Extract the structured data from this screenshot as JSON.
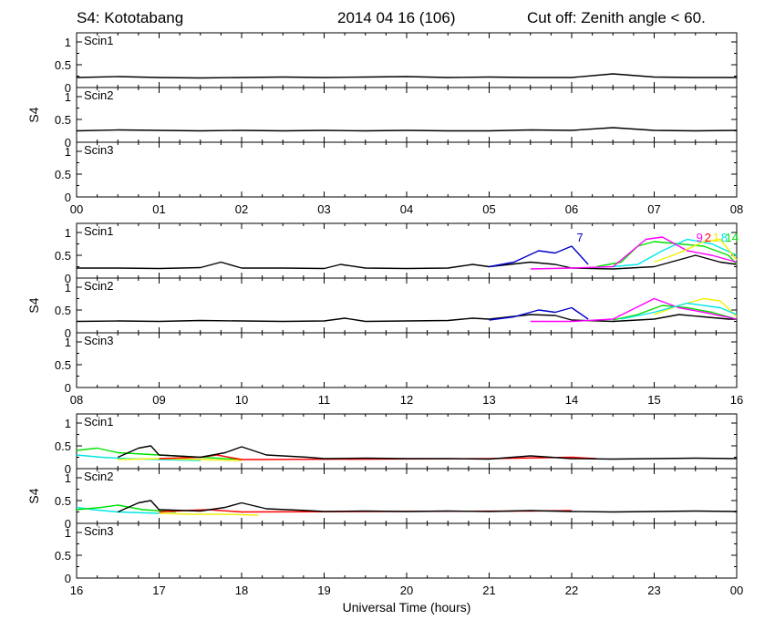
{
  "header": {
    "left": "S4: Kototabang",
    "center": "2014 04 16 (106)",
    "right": "Cut off: Zenith angle < 60."
  },
  "x_axis_label": "Universal Time (hours)",
  "colors": {
    "black": "#000000",
    "blue": "#0000cc",
    "green": "#00e000",
    "cyan": "#00e6e6",
    "magenta": "#ff00ff",
    "red": "#ff0000",
    "yellow": "#f0f000"
  },
  "chart_data": [
    {
      "type": "line",
      "row": 1,
      "ylabel": "S4",
      "ylim": [
        0,
        1.2
      ],
      "yticks": [
        0,
        0.5,
        1
      ],
      "ytick_labels": [
        "0",
        "0.5",
        "1"
      ],
      "xlim": [
        0,
        8
      ],
      "xtick_labels": [
        "00",
        "01",
        "02",
        "03",
        "04",
        "05",
        "06",
        "07",
        "08"
      ],
      "panels": [
        {
          "name": "Scin1",
          "series": [
            {
              "color": "black",
              "x": [
                0,
                0.5,
                1,
                1.5,
                2,
                2.5,
                3,
                3.5,
                4,
                4.5,
                5,
                5.5,
                6,
                6.5,
                7,
                7.5,
                8
              ],
              "y": [
                0.22,
                0.24,
                0.22,
                0.21,
                0.22,
                0.23,
                0.22,
                0.23,
                0.24,
                0.22,
                0.23,
                0.22,
                0.22,
                0.3,
                0.23,
                0.22,
                0.22
              ]
            }
          ]
        },
        {
          "name": "Scin2",
          "series": [
            {
              "color": "black",
              "x": [
                0,
                0.5,
                1,
                1.5,
                2,
                2.5,
                3,
                3.5,
                4,
                4.5,
                5,
                5.5,
                6,
                6.5,
                7,
                7.5,
                8
              ],
              "y": [
                0.25,
                0.27,
                0.26,
                0.25,
                0.26,
                0.25,
                0.26,
                0.25,
                0.26,
                0.25,
                0.25,
                0.27,
                0.26,
                0.32,
                0.26,
                0.25,
                0.26
              ]
            }
          ]
        },
        {
          "name": "Scin3",
          "series": []
        }
      ]
    },
    {
      "type": "line",
      "row": 2,
      "ylabel": "S4",
      "ylim": [
        0,
        1.2
      ],
      "yticks": [
        0,
        0.5,
        1
      ],
      "ytick_labels": [
        "0",
        "0.5",
        "1"
      ],
      "xlim": [
        8,
        16
      ],
      "xtick_labels": [
        "08",
        "09",
        "10",
        "11",
        "12",
        "13",
        "14",
        "15",
        "16"
      ],
      "panels": [
        {
          "name": "Scin1",
          "series": [
            {
              "color": "black",
              "x": [
                8,
                8.5,
                9,
                9.5,
                9.75,
                10,
                10.5,
                11,
                11.2,
                11.5,
                12,
                12.5,
                12.8,
                13,
                13.5,
                13.8,
                14,
                14.5,
                15,
                15.3,
                15.5,
                15.8,
                16
              ],
              "y": [
                0.22,
                0.22,
                0.21,
                0.23,
                0.35,
                0.22,
                0.22,
                0.21,
                0.3,
                0.22,
                0.21,
                0.22,
                0.3,
                0.25,
                0.35,
                0.3,
                0.22,
                0.2,
                0.25,
                0.4,
                0.5,
                0.35,
                0.3
              ]
            },
            {
              "color": "blue",
              "x": [
                13,
                13.3,
                13.6,
                13.8,
                14,
                14.2
              ],
              "y": [
                0.25,
                0.35,
                0.6,
                0.55,
                0.7,
                0.3
              ]
            },
            {
              "color": "green",
              "x": [
                14.3,
                14.6,
                14.8,
                15,
                15.3,
                15.6,
                15.9,
                16
              ],
              "y": [
                0.25,
                0.35,
                0.7,
                0.8,
                0.75,
                0.7,
                0.5,
                0.3
              ]
            },
            {
              "color": "cyan",
              "x": [
                14.5,
                14.8,
                15.1,
                15.4,
                15.7,
                16
              ],
              "y": [
                0.25,
                0.3,
                0.6,
                0.85,
                0.75,
                0.5
              ]
            },
            {
              "color": "magenta",
              "x": [
                13.5,
                14,
                14.5,
                14.9,
                15.1,
                15.4,
                15.7,
                16
              ],
              "y": [
                0.2,
                0.22,
                0.25,
                0.85,
                0.9,
                0.6,
                0.5,
                0.35
              ]
            },
            {
              "color": "yellow",
              "x": [
                15,
                15.3,
                15.6,
                15.8,
                16
              ],
              "y": [
                0.35,
                0.55,
                0.8,
                0.85,
                0.4
              ]
            }
          ]
        },
        {
          "name": "Scin2",
          "series": [
            {
              "color": "black",
              "x": [
                8,
                8.5,
                9,
                9.5,
                10,
                10.5,
                11,
                11.25,
                11.5,
                12,
                12.5,
                12.8,
                13,
                13.5,
                13.8,
                14,
                14.5,
                15,
                15.3,
                15.6,
                15.9,
                16
              ],
              "y": [
                0.25,
                0.26,
                0.25,
                0.27,
                0.26,
                0.25,
                0.26,
                0.32,
                0.25,
                0.26,
                0.27,
                0.32,
                0.3,
                0.4,
                0.38,
                0.28,
                0.25,
                0.3,
                0.4,
                0.35,
                0.3,
                0.3
              ]
            },
            {
              "color": "blue",
              "x": [
                13,
                13.3,
                13.6,
                13.8,
                14,
                14.2
              ],
              "y": [
                0.28,
                0.35,
                0.5,
                0.45,
                0.55,
                0.3
              ]
            },
            {
              "color": "green",
              "x": [
                14.5,
                14.8,
                15.1,
                15.4,
                15.7,
                16
              ],
              "y": [
                0.28,
                0.4,
                0.6,
                0.55,
                0.45,
                0.3
              ]
            },
            {
              "color": "magenta",
              "x": [
                13.5,
                14,
                14.5,
                15,
                15.3,
                15.6,
                16
              ],
              "y": [
                0.25,
                0.25,
                0.3,
                0.75,
                0.55,
                0.45,
                0.3
              ]
            },
            {
              "color": "yellow",
              "x": [
                15,
                15.3,
                15.6,
                15.8,
                16
              ],
              "y": [
                0.4,
                0.6,
                0.75,
                0.7,
                0.35
              ]
            },
            {
              "color": "cyan",
              "x": [
                14.6,
                15,
                15.4,
                15.8,
                16
              ],
              "y": [
                0.3,
                0.45,
                0.65,
                0.55,
                0.4
              ]
            }
          ]
        },
        {
          "name": "Scin3",
          "series": []
        }
      ],
      "annotations": [
        {
          "text": "7",
          "color": "blue",
          "x": 14.1
        },
        {
          "text": "9",
          "color": "magenta",
          "x": 15.55
        },
        {
          "text": "2",
          "color": "red",
          "x": 15.65
        },
        {
          "text": "1",
          "color": "yellow",
          "x": 15.75
        },
        {
          "text": "8",
          "color": "cyan",
          "x": 15.85
        },
        {
          "text": "1",
          "color": "green",
          "x": 15.9
        },
        {
          "text": "4",
          "color": "green",
          "x": 15.98
        }
      ]
    },
    {
      "type": "line",
      "row": 3,
      "ylabel": "S4",
      "ylim": [
        0,
        1.2
      ],
      "yticks": [
        0,
        0.5,
        1
      ],
      "ytick_labels": [
        "0",
        "0.5",
        "1"
      ],
      "xlim": [
        16,
        24
      ],
      "xtick_labels": [
        "16",
        "17",
        "18",
        "19",
        "20",
        "21",
        "22",
        "23",
        "00"
      ],
      "panels": [
        {
          "name": "Scin1",
          "series": [
            {
              "color": "green",
              "x": [
                16,
                16.25,
                16.5,
                17,
                17.5,
                18
              ],
              "y": [
                0.4,
                0.45,
                0.35,
                0.3,
                0.25,
                0.2
              ]
            },
            {
              "color": "cyan",
              "x": [
                16,
                16.3,
                16.6,
                17,
                17.5
              ],
              "y": [
                0.3,
                0.25,
                0.22,
                0.2,
                0.18
              ]
            },
            {
              "color": "yellow",
              "x": [
                16.5,
                17,
                17.5,
                18
              ],
              "y": [
                0.2,
                0.22,
                0.2,
                0.18
              ]
            },
            {
              "color": "red",
              "x": [
                17,
                17.5,
                17.7,
                18,
                18.2,
                21,
                22,
                22.3
              ],
              "y": [
                0.22,
                0.25,
                0.3,
                0.2,
                0.2,
                0.22,
                0.25,
                0.22
              ]
            },
            {
              "color": "black",
              "x": [
                16.5,
                16.75,
                16.9,
                17,
                17.5,
                17.8,
                18,
                18.3,
                18.8,
                19,
                19.5,
                20,
                20.5,
                21,
                21.5,
                22,
                22.5,
                23,
                23.5,
                24
              ],
              "y": [
                0.25,
                0.45,
                0.5,
                0.3,
                0.25,
                0.35,
                0.48,
                0.3,
                0.25,
                0.22,
                0.23,
                0.22,
                0.22,
                0.21,
                0.28,
                0.22,
                0.21,
                0.22,
                0.23,
                0.22
              ]
            }
          ]
        },
        {
          "name": "Scin2",
          "series": [
            {
              "color": "cyan",
              "x": [
                16,
                16.2,
                16.5,
                17
              ],
              "y": [
                0.35,
                0.3,
                0.25,
                0.22
              ]
            },
            {
              "color": "green",
              "x": [
                16,
                16.3,
                16.5,
                16.8,
                17.2
              ],
              "y": [
                0.3,
                0.35,
                0.4,
                0.3,
                0.25
              ]
            },
            {
              "color": "yellow",
              "x": [
                17,
                17.4,
                17.8,
                18.2
              ],
              "y": [
                0.22,
                0.2,
                0.2,
                0.18
              ]
            },
            {
              "color": "red",
              "x": [
                17,
                17.3,
                17.6,
                18,
                21.5,
                22
              ],
              "y": [
                0.25,
                0.28,
                0.3,
                0.25,
                0.27,
                0.28
              ]
            },
            {
              "color": "black",
              "x": [
                16.5,
                16.75,
                16.9,
                17,
                17.5,
                17.8,
                18,
                18.3,
                18.8,
                19,
                19.5,
                20,
                20.5,
                21,
                21.5,
                22,
                22.5,
                23,
                23.5,
                24
              ],
              "y": [
                0.25,
                0.45,
                0.5,
                0.3,
                0.27,
                0.35,
                0.45,
                0.32,
                0.28,
                0.26,
                0.27,
                0.26,
                0.27,
                0.26,
                0.28,
                0.26,
                0.25,
                0.26,
                0.27,
                0.26
              ]
            }
          ]
        },
        {
          "name": "Scin3",
          "series": []
        }
      ]
    }
  ]
}
